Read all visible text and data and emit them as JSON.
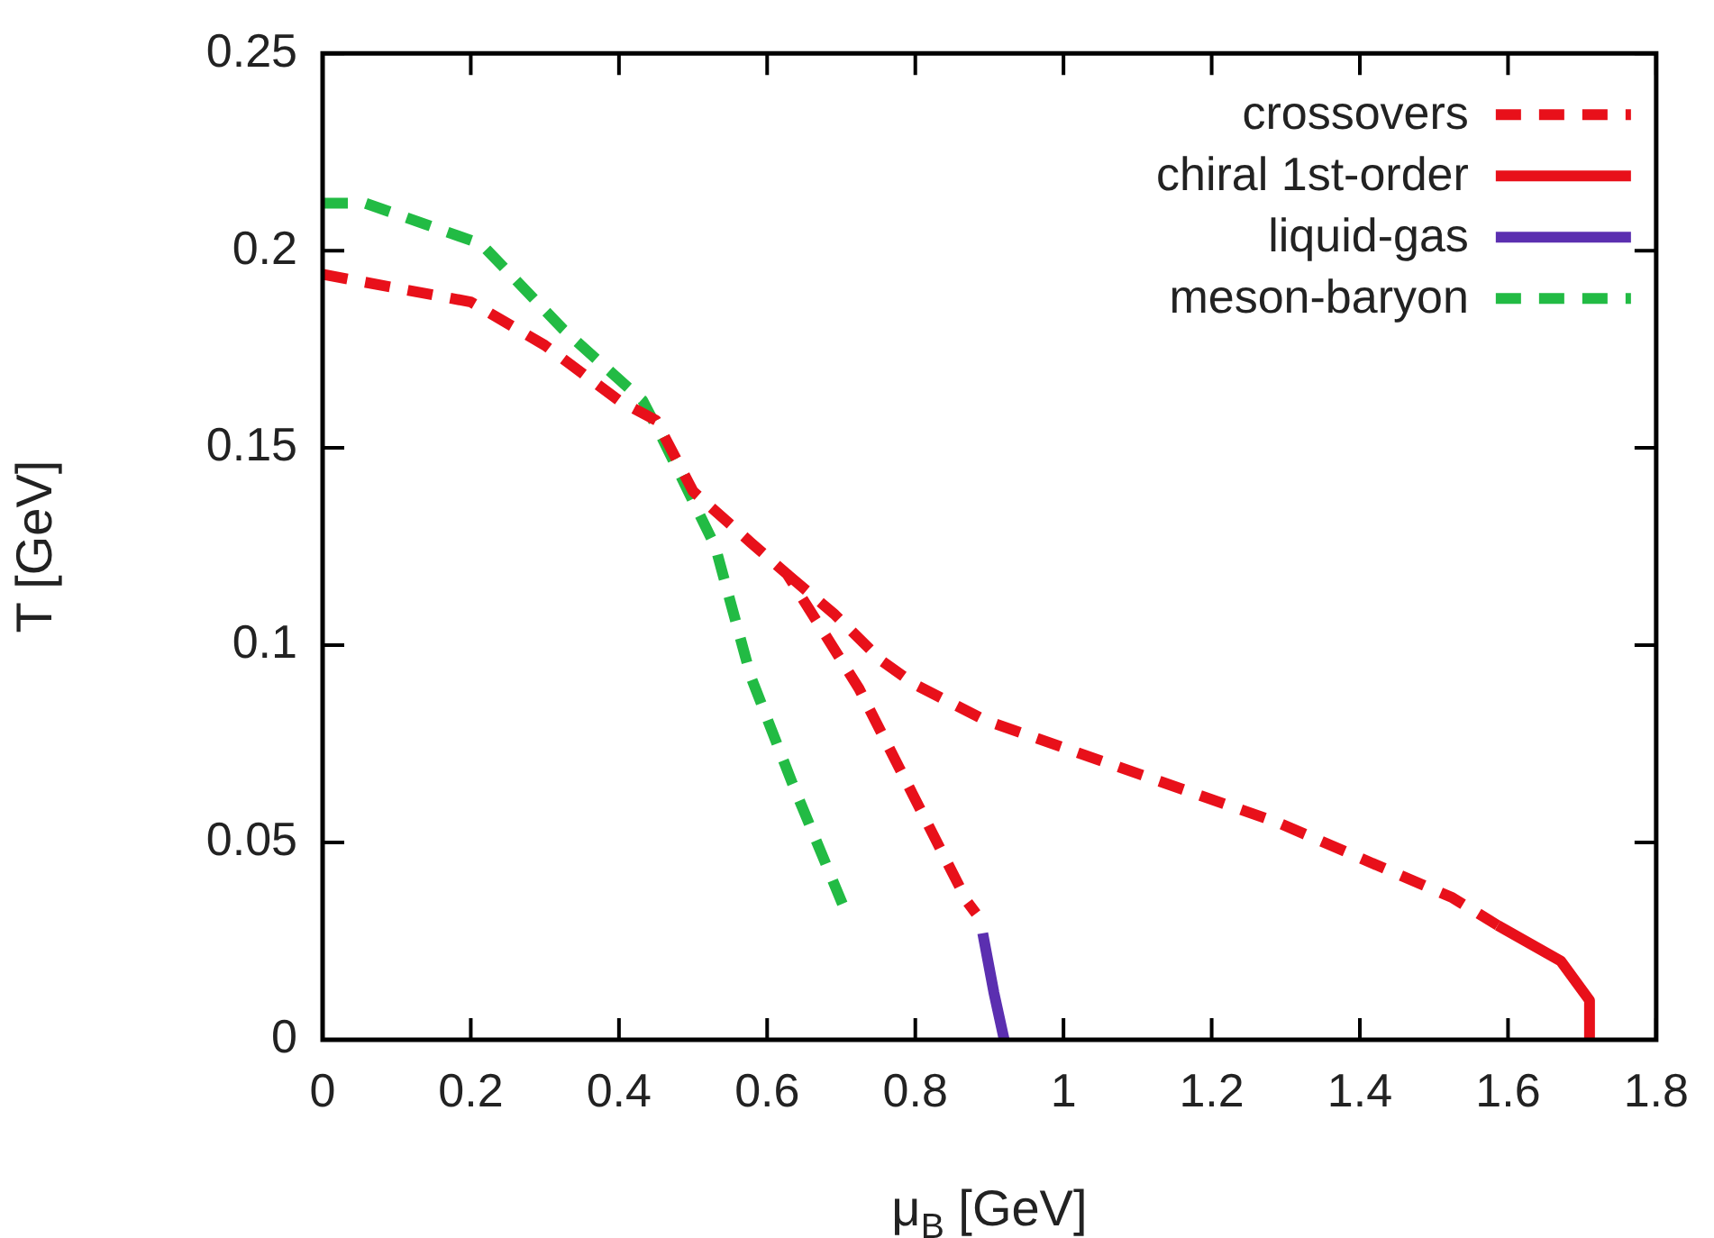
{
  "chart_data": {
    "type": "line",
    "xlabel": "μ$_{B}$ [GeV]",
    "ylabel": "T [GeV]",
    "xlim": [
      0,
      1.8
    ],
    "xticks": [
      0,
      0.2,
      0.4,
      0.6,
      0.8,
      1,
      1.2,
      1.4,
      1.6,
      1.8
    ],
    "ylim": [
      0,
      0.25
    ],
    "yticks": [
      0,
      0.05,
      0.1,
      0.15,
      0.2,
      0.25
    ],
    "grid": false,
    "legend": "top right",
    "marker": "none",
    "series": [
      {
        "name": "crossovers",
        "color": "#e8101a",
        "line_style": "dashed",
        "x": [
          0,
          0.2,
          0.3,
          0.4,
          0.45,
          0.5,
          0.578,
          0.627,
          0.724,
          0.797,
          0.87,
          0.882
        ],
        "values": [
          0.194,
          0.187,
          0.176,
          0.162,
          0.157,
          0.139,
          0.126,
          0.118,
          0.089,
          0.062,
          0.035,
          0.032
        ]
      },
      {
        "color": "#e8101a",
        "line_style": "dashed",
        "x": [
          0.627,
          0.69,
          0.755,
          0.8,
          0.894,
          1.29,
          1.525,
          1.586
        ],
        "values": [
          0.118,
          0.108,
          0.096,
          0.09,
          0.081,
          0.055,
          0.036,
          0.029
        ]
      },
      {
        "name": "chiral 1st-order",
        "color": "#e8101a",
        "line_style": "solid",
        "x": [
          1.586,
          1.671,
          1.71,
          1.71
        ],
        "values": [
          0.029,
          0.02,
          0.01,
          0
        ]
      },
      {
        "name": "liquid-gas",
        "color": "#5b2fb0",
        "line_style": "solid",
        "x": [
          0.891,
          0.906,
          0.92
        ],
        "values": [
          0.027,
          0.012,
          0
        ]
      },
      {
        "name": "meson-baryon",
        "color": "#22bb44",
        "line_style": "dashed",
        "x": [
          0,
          0.058,
          0.214,
          0.325,
          0.432,
          0.457,
          0.53,
          0.578,
          0.634,
          0.707
        ],
        "values": [
          0.212,
          0.212,
          0.2017,
          0.18,
          0.162,
          0.153,
          0.125,
          0.092,
          0.065,
          0.032
        ]
      }
    ]
  }
}
